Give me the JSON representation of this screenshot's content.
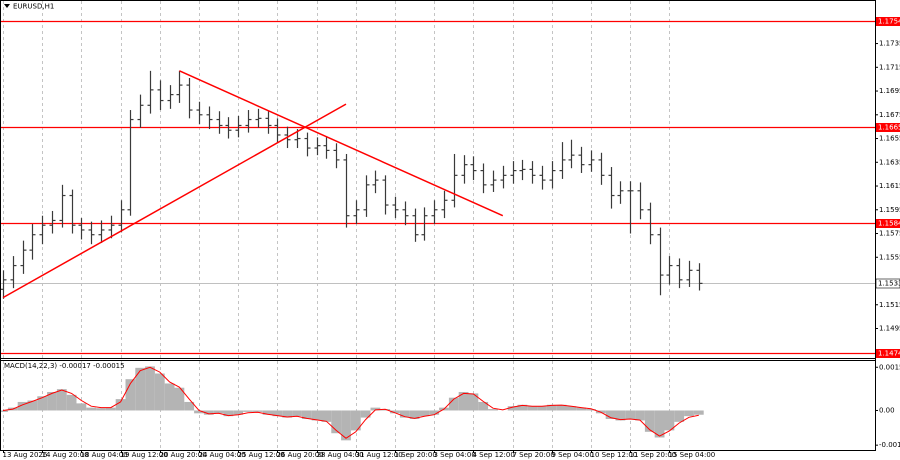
{
  "chart_data": {
    "type": "ohlc",
    "title": "EURUSD,H1",
    "categories": [
      "13 Aug 2026",
      null,
      null,
      null,
      "14 Aug 20:00",
      null,
      null,
      null,
      "18 Aug 04:00",
      null,
      null,
      null,
      "19 Aug 12:00",
      null,
      null,
      null,
      "20 Aug 20:00",
      null,
      null,
      null,
      "24 Aug 04:00",
      null,
      null,
      null,
      "25 Aug 12:00",
      null,
      null,
      null,
      "26 Aug 20:00",
      null,
      null,
      null,
      "28 Aug 04:00",
      null,
      null,
      null,
      "31 Aug 12:00",
      null,
      null,
      null,
      "1 Sep 20:00",
      null,
      null,
      null,
      "3 Sep 04:00",
      null,
      null,
      null,
      "4 Sep 12:00",
      null,
      null,
      null,
      "7 Sep 20:00",
      null,
      null,
      null,
      "9 Sep 04:00",
      null,
      null,
      null,
      "10 Sep 12:00",
      null,
      null,
      null,
      "11 Sep 20:00",
      null,
      null,
      null,
      "15 Sep 04:00",
      null,
      null,
      null
    ],
    "open": [
      1.1528,
      1.1536,
      1.1548,
      1.1561,
      1.1574,
      1.1582,
      1.1586,
      1.1607,
      1.1582,
      1.1578,
      1.1574,
      1.1578,
      1.1582,
      1.1595,
      1.1671,
      1.1683,
      1.1696,
      1.1687,
      1.1692,
      1.17,
      1.1679,
      1.1675,
      1.1671,
      1.1666,
      1.1662,
      1.1666,
      1.1671,
      1.1672,
      1.1666,
      1.1658,
      1.1654,
      1.1655,
      1.1647,
      1.1649,
      1.1645,
      1.1637,
      1.159,
      1.1595,
      1.1616,
      1.162,
      1.1599,
      1.1595,
      1.159,
      1.1574,
      1.159,
      1.1595,
      1.1603,
      1.1624,
      1.1633,
      1.1628,
      1.1616,
      1.162,
      1.1624,
      1.1628,
      1.1629,
      1.1624,
      1.162,
      1.1628,
      1.1637,
      1.1641,
      1.1633,
      1.1637,
      1.1624,
      1.1607,
      1.1611,
      1.1611,
      1.1595,
      1.1574,
      1.154,
      1.1548,
      1.1536,
      1.1544
    ],
    "high": [
      1.1544,
      1.1556,
      1.1569,
      1.1583,
      1.159,
      1.1594,
      1.1616,
      1.1612,
      1.1588,
      1.1585,
      1.1586,
      1.159,
      1.1603,
      1.1679,
      1.1692,
      1.1712,
      1.1704,
      1.17,
      1.1712,
      1.1706,
      1.1686,
      1.1682,
      1.1678,
      1.1673,
      1.1674,
      1.1679,
      1.168,
      1.1678,
      1.1672,
      1.1665,
      1.1663,
      1.166,
      1.1656,
      1.1656,
      1.1651,
      1.1642,
      1.1603,
      1.1624,
      1.1628,
      1.1624,
      1.1606,
      1.1602,
      1.1596,
      1.1597,
      1.1603,
      1.1611,
      1.1642,
      1.1641,
      1.164,
      1.1634,
      1.1628,
      1.1632,
      1.1636,
      1.1637,
      1.1636,
      1.1632,
      1.1636,
      1.1652,
      1.1654,
      1.1648,
      1.1645,
      1.1643,
      1.1631,
      1.1619,
      1.1619,
      1.1618,
      1.1601,
      1.158,
      1.1556,
      1.1554,
      1.1552,
      1.155
    ],
    "low": [
      1.152,
      1.1529,
      1.1541,
      1.1553,
      1.1566,
      1.1575,
      1.158,
      1.1575,
      1.157,
      1.1566,
      1.1567,
      1.1571,
      1.1576,
      1.159,
      1.1664,
      1.1676,
      1.1679,
      1.168,
      1.1685,
      1.1672,
      1.1667,
      1.1663,
      1.1659,
      1.1655,
      1.1656,
      1.166,
      1.1664,
      1.1659,
      1.1651,
      1.1647,
      1.1647,
      1.164,
      1.1641,
      1.1638,
      1.163,
      1.158,
      1.1583,
      1.1589,
      1.1609,
      1.1591,
      1.1588,
      1.1582,
      1.1568,
      1.1569,
      1.1583,
      1.1588,
      1.1597,
      1.1617,
      1.162,
      1.1609,
      1.161,
      1.1613,
      1.1617,
      1.162,
      1.1617,
      1.1612,
      1.1613,
      1.1621,
      1.163,
      1.1626,
      1.1627,
      1.1616,
      1.1596,
      1.16,
      1.1575,
      1.1587,
      1.1566,
      1.1523,
      1.1532,
      1.1529,
      1.153,
      1.1527
    ],
    "close": [
      1.1536,
      1.1548,
      1.1561,
      1.1574,
      1.1582,
      1.1586,
      1.1607,
      1.1582,
      1.1578,
      1.1574,
      1.1578,
      1.1582,
      1.1595,
      1.1671,
      1.1683,
      1.1696,
      1.1687,
      1.1692,
      1.17,
      1.1679,
      1.1675,
      1.1671,
      1.1666,
      1.1662,
      1.1666,
      1.1671,
      1.1672,
      1.1666,
      1.1658,
      1.1654,
      1.1655,
      1.1647,
      1.1649,
      1.1645,
      1.1637,
      1.159,
      1.1595,
      1.1616,
      1.162,
      1.1599,
      1.1595,
      1.159,
      1.1574,
      1.159,
      1.1595,
      1.1603,
      1.1624,
      1.1633,
      1.1628,
      1.1616,
      1.162,
      1.1624,
      1.1628,
      1.1629,
      1.1624,
      1.162,
      1.1628,
      1.1637,
      1.1641,
      1.1633,
      1.1637,
      1.1624,
      1.1607,
      1.1611,
      1.1611,
      1.1595,
      1.1574,
      1.154,
      1.1548,
      1.1536,
      1.1544,
      1.1533
    ],
    "color": "#3a3a3a",
    "ylim": [
      1.1471,
      1.177
    ],
    "yticks": [
      1.1735,
      1.1715,
      1.1695,
      1.1675,
      1.1655,
      1.1635,
      1.1615,
      1.1595,
      1.1575,
      1.1555,
      1.1515,
      1.1495
    ],
    "grid": true,
    "levels": [
      1.1754,
      1.1665,
      1.1584,
      1.1474
    ],
    "level_color": "#ff0000",
    "last_price": 1.1533,
    "trendlines": [
      {
        "points": [
          [
            0,
            1.1521
          ],
          [
            35,
            1.1684
          ]
        ]
      },
      {
        "points": [
          [
            18,
            1.1712
          ],
          [
            51,
            1.159
          ]
        ]
      }
    ],
    "trendline_color": "#ff0000",
    "macd": {
      "type": "macd",
      "label": "MACD(14,22,3) -0.00017 -0.00015",
      "histogram": [
        -5e-05,
        0.0001,
        0.0003,
        0.00035,
        0.0005,
        0.00065,
        0.00075,
        0.00055,
        0.00025,
        0.0001,
        8e-05,
        0.0001,
        0.0004,
        0.0011,
        0.0015,
        0.00155,
        0.0013,
        0.00095,
        0.0008,
        0.0003,
        -0.0001,
        -0.00015,
        -0.0001,
        -0.0002,
        -0.00015,
        -5e-05,
        -5e-05,
        -0.00015,
        -0.0002,
        -0.00025,
        -0.0002,
        -0.0003,
        -0.00035,
        -0.0004,
        -0.0008,
        -0.00105,
        -0.0007,
        -0.00025,
        0.0001,
        5e-05,
        -0.0001,
        -0.00025,
        -0.0003,
        -0.0002,
        -0.00015,
        0.0001,
        0.00045,
        0.00065,
        0.0006,
        0.0003,
        5e-05,
        0,
        0.00015,
        0.0002,
        0.00015,
        0.00015,
        0.0002,
        0.0002,
        0.00015,
        0.0001,
        5e-05,
        -0.0001,
        -0.0003,
        -0.00035,
        -0.0003,
        -0.00035,
        -0.00075,
        -0.00095,
        -0.0007,
        -0.0004,
        -0.0002,
        -0.00015
      ],
      "signal": [
        0,
        5e-05,
        0.0002,
        0.00032,
        0.00045,
        0.0006,
        0.00072,
        0.0006,
        0.00035,
        0.00015,
        0.0001,
        0.0001,
        0.0003,
        0.00095,
        0.0014,
        0.00152,
        0.00135,
        0.001,
        0.00082,
        0.0004,
        0,
        -0.00012,
        -0.0001,
        -0.00018,
        -0.00015,
        -8e-05,
        -6e-05,
        -0.00013,
        -0.00018,
        -0.00023,
        -0.0002,
        -0.00028,
        -0.00033,
        -0.00038,
        -0.0007,
        -0.00098,
        -0.00075,
        -0.00032,
        2e-05,
        4e-05,
        -8e-05,
        -0.00022,
        -0.00028,
        -0.0002,
        -0.00015,
        5e-05,
        0.0004,
        0.0006,
        0.00058,
        0.00032,
        8e-05,
        2e-05,
        0.00012,
        0.00018,
        0.00015,
        0.00015,
        0.00018,
        0.00019,
        0.00015,
        0.0001,
        6e-05,
        -6e-05,
        -0.00025,
        -0.00032,
        -0.0003,
        -0.00034,
        -0.00068,
        -0.0009,
        -0.00072,
        -0.00044,
        -0.00024,
        -0.00017
      ],
      "histogram_color": "#b4b4b4",
      "signal_color": "#ff0000",
      "ylim": [
        -0.00139,
        0.00174
      ],
      "yticks": [
        0.00152,
        {
          "value": 0,
          "label": "0.00"
        },
        -0.00122
      ]
    }
  }
}
